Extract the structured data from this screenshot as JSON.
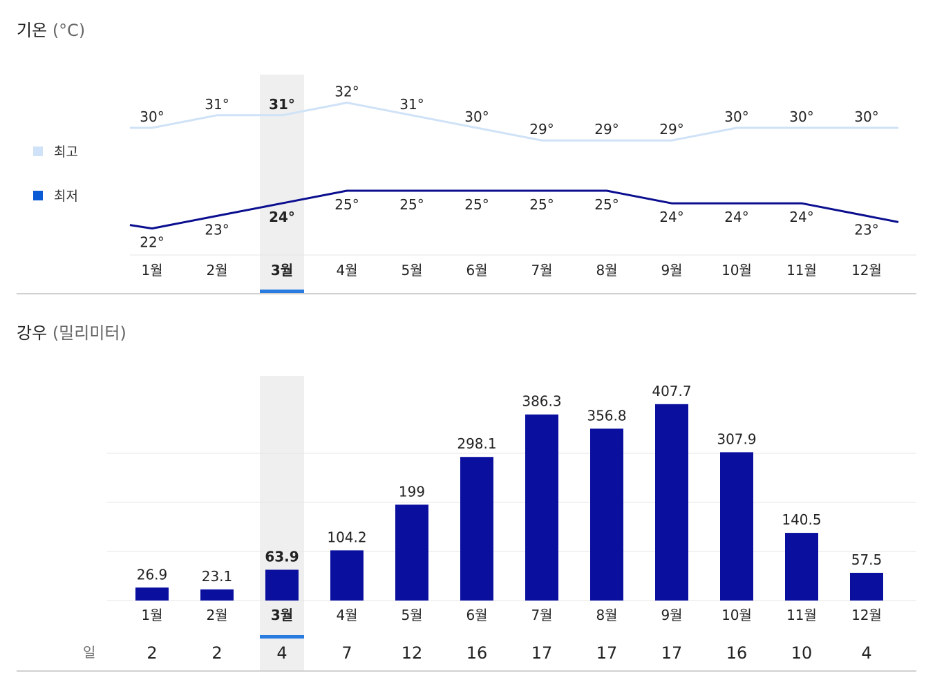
{
  "colors": {
    "high_line": "#cfe2f7",
    "low_line": "#0b0f8f",
    "bar": "#0a0f9e",
    "highlight_bg": "#efefef",
    "highlight_bar": "#2a7be0",
    "grid": "#e6e6e6",
    "axis": "#d0d0d0"
  },
  "temperature": {
    "title": "기온",
    "unit": "(°C)",
    "legend_high": "최고",
    "legend_low": "최저"
  },
  "rainfall": {
    "title": "강우",
    "unit": "(밀리미터)",
    "days_label": "일"
  },
  "selected_index": 2,
  "chart_data": [
    {
      "type": "line",
      "title": "기온 (°C)",
      "categories": [
        "1월",
        "2월",
        "3월",
        "4월",
        "5월",
        "6월",
        "7월",
        "8월",
        "9월",
        "10월",
        "11월",
        "12월"
      ],
      "series": [
        {
          "name": "최고",
          "values": [
            30,
            31,
            31,
            32,
            31,
            30,
            29,
            29,
            29,
            30,
            30,
            30
          ],
          "labels": [
            "30°",
            "31°",
            "31°",
            "32°",
            "31°",
            "30°",
            "29°",
            "29°",
            "29°",
            "30°",
            "30°",
            "30°"
          ]
        },
        {
          "name": "최저",
          "values": [
            22,
            23,
            24,
            25,
            25,
            25,
            25,
            25,
            24,
            24,
            24,
            23
          ],
          "labels": [
            "22°",
            "23°",
            "24°",
            "25°",
            "25°",
            "25°",
            "25°",
            "25°",
            "24°",
            "24°",
            "24°",
            "23°"
          ]
        }
      ],
      "legend": "left"
    },
    {
      "type": "bar",
      "title": "강우 (밀리미터)",
      "categories": [
        "1월",
        "2월",
        "3월",
        "4월",
        "5월",
        "6월",
        "7월",
        "8월",
        "9월",
        "10월",
        "11월",
        "12월"
      ],
      "values": [
        26.9,
        23.1,
        63.9,
        104.2,
        199,
        298.1,
        386.3,
        356.8,
        407.7,
        307.9,
        140.5,
        57.5
      ],
      "labels": [
        "26.9",
        "23.1",
        "63.9",
        "104.2",
        "199",
        "298.1",
        "386.3",
        "356.8",
        "407.7",
        "307.9",
        "140.5",
        "57.5"
      ],
      "rainy_days": [
        2,
        2,
        4,
        7,
        12,
        16,
        17,
        17,
        17,
        16,
        10,
        4
      ],
      "ylim": [
        0,
        450
      ]
    }
  ]
}
